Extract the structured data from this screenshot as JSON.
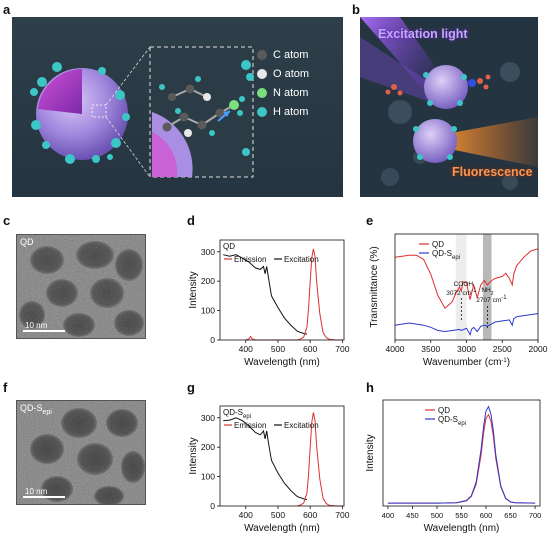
{
  "panel_letters": [
    "a",
    "b",
    "c",
    "d",
    "e",
    "f",
    "g",
    "h"
  ],
  "panel_a": {
    "legend": [
      {
        "label": "C atom",
        "color": "#5a5a5a"
      },
      {
        "label": "O atom",
        "color": "#e8e8e8"
      },
      {
        "label": "N atom",
        "color": "#7be07b"
      },
      {
        "label": "H atom",
        "color": "#3cc6c6"
      }
    ]
  },
  "panel_b": {
    "excitation_label": "Excitation light",
    "fluorescence_label": "Fluorescence"
  },
  "panel_c": {
    "label": "QD",
    "scalebar": "10 nm"
  },
  "panel_f": {
    "label": "QD-S",
    "label_sub": "epi",
    "scalebar": "10 nm"
  },
  "chart_data": [
    {
      "id": "d",
      "type": "line",
      "annotation": "QD",
      "xlabel": "Wavelength (nm)",
      "ylabel": "Intensity",
      "xlim": [
        320,
        705
      ],
      "ylim": [
        0,
        340
      ],
      "xticks": [
        400,
        500,
        600,
        700
      ],
      "yticks": [
        0,
        100,
        200,
        300
      ],
      "series": [
        {
          "name": "Excitation",
          "color": "#111111",
          "x": [
            330,
            350,
            370,
            390,
            410,
            430,
            445,
            455,
            460,
            465,
            470,
            480,
            500,
            520,
            540,
            560,
            580,
            590
          ],
          "y": [
            290,
            285,
            290,
            278,
            265,
            245,
            240,
            250,
            225,
            250,
            215,
            150,
            110,
            75,
            50,
            30,
            22,
            20
          ]
        },
        {
          "name": "Emission",
          "color": "#e03030",
          "x": [
            400,
            410,
            415,
            420,
            430,
            560,
            570,
            580,
            590,
            595,
            600,
            605,
            610,
            615,
            620,
            630,
            640,
            650,
            660,
            680,
            700
          ],
          "y": [
            0,
            4,
            12,
            4,
            0,
            0,
            3,
            10,
            45,
            110,
            200,
            280,
            310,
            285,
            200,
            90,
            25,
            8,
            2,
            0,
            0
          ]
        }
      ]
    },
    {
      "id": "e",
      "type": "line",
      "xlabel": "Wavenumber (cm-1)",
      "ylabel": "Transmittance (%)",
      "xlim": [
        4000,
        2000
      ],
      "ylim": [
        0,
        100
      ],
      "xticks": [
        4000,
        3500,
        3000,
        2500,
        2000
      ],
      "annotations": [
        {
          "text": "COOH",
          "x": 3072
        },
        {
          "text": "3072 cm-1",
          "x": 3072
        },
        {
          "text": "NH2",
          "x": 2707
        },
        {
          "text": "2707 cm-1",
          "x": 2707
        }
      ],
      "shaded_bands": [
        [
          3150,
          3000
        ],
        [
          2770,
          2650
        ]
      ],
      "series": [
        {
          "name": "QD",
          "color": "#e03030",
          "x": [
            4000,
            3900,
            3800,
            3700,
            3600,
            3500,
            3400,
            3300,
            3200,
            3150,
            3100,
            3072,
            3050,
            3000,
            2950,
            2930,
            2900,
            2850,
            2800,
            2750,
            2707,
            2650,
            2600,
            2500,
            2450,
            2400,
            2360,
            2340,
            2300,
            2200,
            2100,
            2000
          ],
          "y": [
            78,
            79,
            80,
            80,
            76,
            62,
            42,
            30,
            36,
            44,
            50,
            46,
            55,
            54,
            38,
            44,
            52,
            40,
            52,
            56,
            52,
            56,
            58,
            60,
            63,
            58,
            52,
            62,
            70,
            78,
            84,
            86
          ]
        },
        {
          "name": "QD-Sepi",
          "color": "#2a3ad0",
          "x": [
            4000,
            3900,
            3800,
            3700,
            3600,
            3500,
            3400,
            3300,
            3200,
            3100,
            3072,
            3000,
            2950,
            2930,
            2900,
            2850,
            2800,
            2750,
            2707,
            2650,
            2600,
            2500,
            2400,
            2360,
            2340,
            2300,
            2200,
            2100,
            2000
          ],
          "y": [
            14,
            15,
            16,
            15,
            14,
            12,
            9,
            8,
            9,
            10,
            9,
            11,
            5,
            10,
            12,
            8,
            13,
            14,
            13,
            15,
            17,
            18,
            19,
            14,
            20,
            22,
            23,
            24,
            25
          ]
        }
      ]
    },
    {
      "id": "g",
      "type": "line",
      "annotation": "QD-S",
      "annotation_sub": "epi",
      "xlabel": "Wavelength (nm)",
      "ylabel": "Intensity",
      "xlim": [
        320,
        705
      ],
      "ylim": [
        0,
        340
      ],
      "xticks": [
        400,
        500,
        600,
        700
      ],
      "yticks": [
        0,
        100,
        200,
        300
      ],
      "series": [
        {
          "name": "Excitation",
          "color": "#111111",
          "x": [
            330,
            350,
            370,
            390,
            410,
            430,
            445,
            455,
            460,
            465,
            470,
            480,
            500,
            520,
            540,
            560,
            580,
            590
          ],
          "y": [
            290,
            292,
            300,
            290,
            272,
            250,
            242,
            255,
            228,
            255,
            218,
            155,
            112,
            78,
            52,
            32,
            24,
            22
          ]
        },
        {
          "name": "Emission",
          "color": "#e03030",
          "x": [
            560,
            570,
            580,
            590,
            595,
            600,
            605,
            610,
            615,
            620,
            630,
            640,
            650,
            660,
            680,
            700
          ],
          "y": [
            0,
            3,
            10,
            45,
            110,
            200,
            285,
            318,
            290,
            205,
            92,
            26,
            8,
            2,
            0,
            0
          ]
        }
      ]
    },
    {
      "id": "h",
      "type": "line",
      "xlabel": "Wavelength (nm)",
      "ylabel": "Intensity",
      "xlim": [
        390,
        710
      ],
      "ylim": [
        0,
        290
      ],
      "xticks": [
        400,
        450,
        500,
        550,
        600,
        650,
        700
      ],
      "series": [
        {
          "name": "QD",
          "color": "#e03030",
          "x": [
            400,
            500,
            540,
            560,
            570,
            580,
            590,
            595,
            600,
            605,
            610,
            615,
            620,
            630,
            640,
            650,
            660,
            700
          ],
          "y": [
            8,
            8,
            9,
            14,
            26,
            60,
            140,
            200,
            240,
            250,
            232,
            190,
            130,
            52,
            20,
            11,
            9,
            8
          ]
        },
        {
          "name": "QD-Sepi",
          "color": "#2a3ad0",
          "x": [
            400,
            500,
            540,
            560,
            570,
            580,
            590,
            595,
            600,
            605,
            610,
            615,
            620,
            630,
            640,
            650,
            660,
            700
          ],
          "y": [
            8,
            8,
            9,
            15,
            28,
            66,
            155,
            218,
            260,
            272,
            252,
            205,
            140,
            55,
            21,
            11,
            9,
            8
          ]
        }
      ]
    }
  ]
}
